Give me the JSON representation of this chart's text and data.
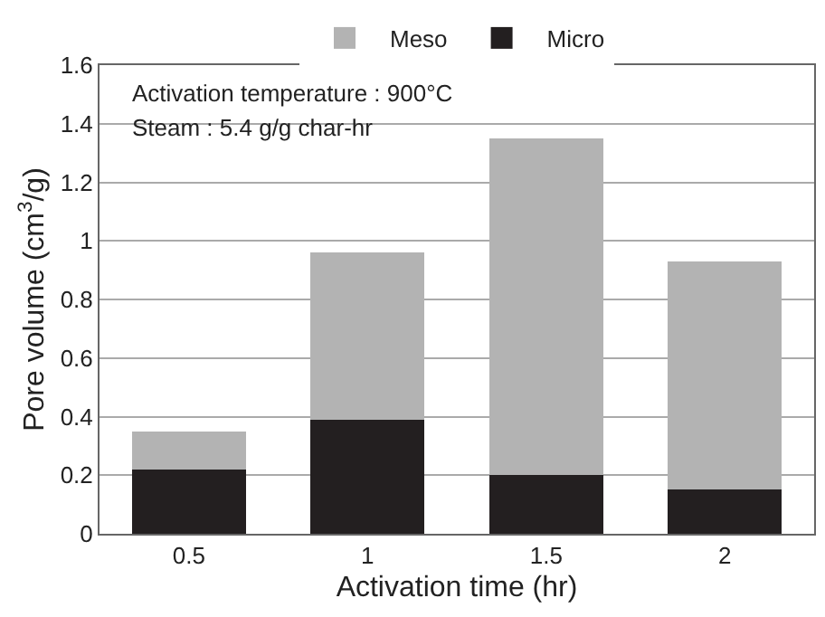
{
  "chart_data": {
    "type": "bar",
    "stacked": true,
    "xlabel": "Activation time (hr)",
    "ylabel": "Pore volume (cm$^{3}$/g)",
    "categories": [
      "0.5",
      "1",
      "1.5",
      "2"
    ],
    "series": [
      {
        "name": "Micro",
        "color": "#231f20",
        "values": [
          0.22,
          0.39,
          0.2,
          0.15
        ]
      },
      {
        "name": "Meso",
        "color": "#b3b3b3",
        "values": [
          0.13,
          0.57,
          1.15,
          0.78
        ]
      }
    ],
    "ylim": [
      0,
      1.6
    ],
    "yticks": [
      0,
      0.2,
      0.4,
      0.6,
      0.8,
      1,
      1.2,
      1.4,
      1.6
    ],
    "grid": "y",
    "legend": "top",
    "annotations": [
      "Activation temperature : 900°C",
      "Steam : 5.4 g/g char-hr"
    ]
  }
}
